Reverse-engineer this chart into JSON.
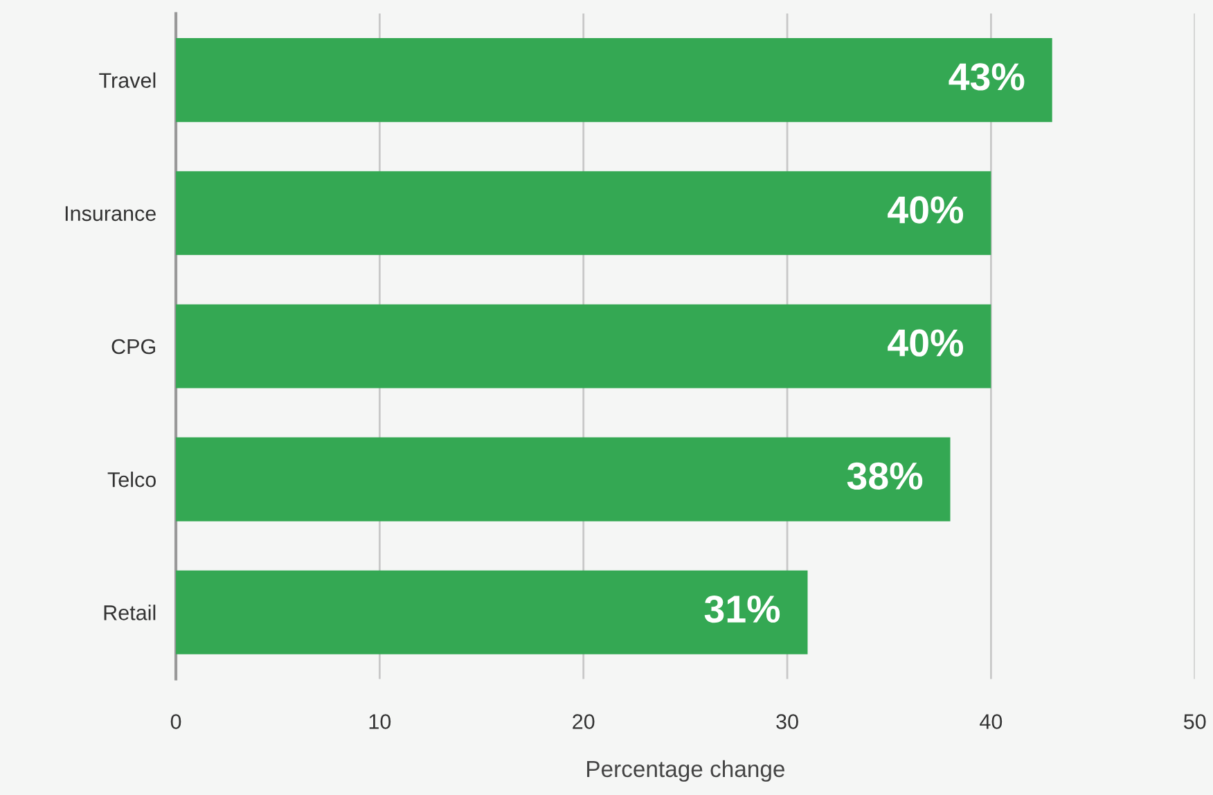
{
  "chart_data": {
    "type": "bar",
    "orientation": "horizontal",
    "xlabel": "Percentage change",
    "categories": [
      "Travel",
      "Insurance",
      "CPG",
      "Telco",
      "Retail"
    ],
    "values": [
      43,
      40,
      40,
      38,
      31
    ],
    "value_labels": [
      "43%",
      "40%",
      "40%",
      "38%",
      "31%"
    ],
    "color": "#34a853",
    "xlim": [
      0,
      50
    ],
    "xticks": [
      0,
      10,
      20,
      30,
      40,
      50
    ],
    "grid": "x",
    "legend": false
  }
}
